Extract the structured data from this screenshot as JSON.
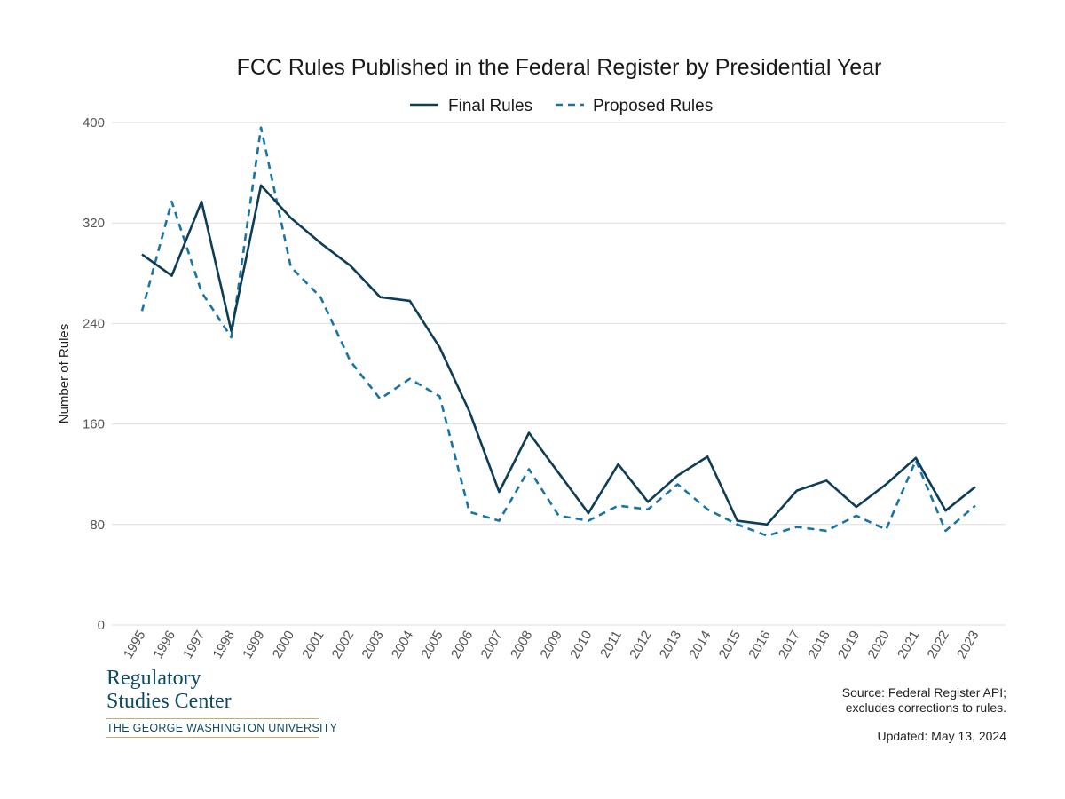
{
  "chart_data": {
    "type": "line",
    "title": "FCC Rules Published in the Federal Register by Presidential Year",
    "ylabel": "Number of Rules",
    "xlabel": "",
    "ylim": [
      0,
      400
    ],
    "yticks": [
      0,
      80,
      160,
      240,
      320,
      400
    ],
    "grid": true,
    "legend_position": "top",
    "categories": [
      "1995",
      "1996",
      "1997",
      "1998",
      "1999",
      "2000",
      "2001",
      "2002",
      "2003",
      "2004",
      "2005",
      "2006",
      "2007",
      "2008",
      "2009",
      "2010",
      "2011",
      "2012",
      "2013",
      "2014",
      "2015",
      "2016",
      "2017",
      "2018",
      "2019",
      "2020",
      "2021",
      "2022",
      "2023"
    ],
    "series": [
      {
        "name": "Final Rules",
        "style": "solid",
        "color": "#0d3d57",
        "values": [
          295,
          278,
          337,
          234,
          350,
          324,
          304,
          286,
          261,
          258,
          221,
          170,
          106,
          153,
          121,
          89,
          128,
          98,
          119,
          134,
          83,
          80,
          107,
          115,
          94,
          112,
          133,
          91,
          110
        ]
      },
      {
        "name": "Proposed Rules",
        "style": "dashed",
        "color": "#1874a5",
        "values": [
          250,
          337,
          265,
          229,
          396,
          285,
          261,
          210,
          180,
          196,
          182,
          90,
          83,
          124,
          87,
          83,
          95,
          92,
          112,
          92,
          80,
          71,
          78,
          75,
          87,
          76,
          131,
          75,
          95
        ]
      }
    ]
  },
  "logo": {
    "line1": "Regulatory",
    "line2": "Studies Center",
    "university": "THE GEORGE WASHINGTON UNIVERSITY"
  },
  "source": {
    "line1": "Source: Federal Register API;",
    "line2": "excludes corrections to rules."
  },
  "updated": "Updated: May 13, 2024"
}
